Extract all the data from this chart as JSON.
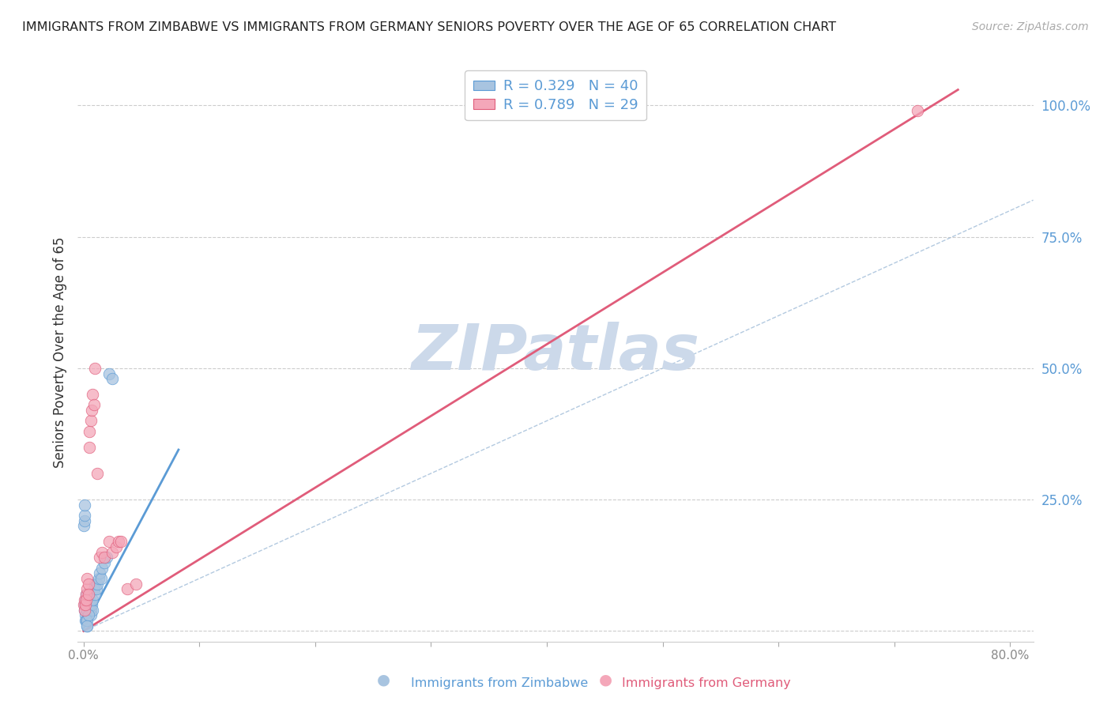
{
  "title": "IMMIGRANTS FROM ZIMBABWE VS IMMIGRANTS FROM GERMANY SENIORS POVERTY OVER THE AGE OF 65 CORRELATION CHART",
  "source": "Source: ZipAtlas.com",
  "ylabel": "Seniors Poverty Over the Age of 65",
  "xlabel": "",
  "xlim": [
    -0.005,
    0.82
  ],
  "ylim": [
    -0.02,
    1.08
  ],
  "xticks": [
    0.0,
    0.1,
    0.2,
    0.3,
    0.4,
    0.5,
    0.6,
    0.7,
    0.8
  ],
  "xticklabels": [
    "0.0%",
    "",
    "",
    "",
    "",
    "",
    "",
    "",
    "80.0%"
  ],
  "yticks_right": [
    0.0,
    0.25,
    0.5,
    0.75,
    1.0
  ],
  "ytick_labels_right": [
    "",
    "25.0%",
    "50.0%",
    "75.0%",
    "100.0%"
  ],
  "series1_name": "Immigrants from Zimbabwe",
  "series2_name": "Immigrants from Germany",
  "color1": "#a8c4e0",
  "color2": "#f4a7b9",
  "line_color1": "#5b9bd5",
  "line_color2": "#e05c7a",
  "text_color_right": "#5b9bd5",
  "watermark_color": "#ccd9ea",
  "grid_color": "#cccccc",
  "background_color": "#ffffff",
  "zimbabwe_x": [
    0.0008,
    0.001,
    0.0012,
    0.0015,
    0.002,
    0.002,
    0.003,
    0.003,
    0.004,
    0.004,
    0.005,
    0.005,
    0.006,
    0.006,
    0.007,
    0.008,
    0.008,
    0.009,
    0.01,
    0.01,
    0.011,
    0.012,
    0.013,
    0.014,
    0.015,
    0.016,
    0.018,
    0.02,
    0.022,
    0.025,
    0.0005,
    0.0008,
    0.001,
    0.0015,
    0.002,
    0.003,
    0.003,
    0.004,
    0.003,
    0.001
  ],
  "zimbabwe_y": [
    0.04,
    0.05,
    0.03,
    0.06,
    0.07,
    0.05,
    0.04,
    0.06,
    0.05,
    0.07,
    0.06,
    0.05,
    0.04,
    0.03,
    0.05,
    0.04,
    0.06,
    0.08,
    0.07,
    0.09,
    0.08,
    0.09,
    0.1,
    0.11,
    0.1,
    0.12,
    0.13,
    0.14,
    0.49,
    0.48,
    0.2,
    0.21,
    0.22,
    0.02,
    0.02,
    0.01,
    0.02,
    0.03,
    0.01,
    0.24
  ],
  "germany_x": [
    0.0005,
    0.001,
    0.001,
    0.0015,
    0.002,
    0.002,
    0.003,
    0.003,
    0.004,
    0.004,
    0.005,
    0.005,
    0.006,
    0.007,
    0.008,
    0.009,
    0.01,
    0.012,
    0.014,
    0.016,
    0.018,
    0.022,
    0.025,
    0.028,
    0.03,
    0.032,
    0.038,
    0.045,
    0.72
  ],
  "germany_y": [
    0.05,
    0.04,
    0.06,
    0.05,
    0.07,
    0.06,
    0.08,
    0.1,
    0.09,
    0.07,
    0.35,
    0.38,
    0.4,
    0.42,
    0.45,
    0.43,
    0.5,
    0.3,
    0.14,
    0.15,
    0.14,
    0.17,
    0.15,
    0.16,
    0.17,
    0.17,
    0.08,
    0.09,
    0.99
  ],
  "zim_trend_x": [
    0.0,
    0.082
  ],
  "zim_trend_y": [
    0.005,
    0.345
  ],
  "ger_trend_x": [
    0.0,
    0.755
  ],
  "ger_trend_y": [
    0.0,
    1.03
  ],
  "ref_line_x": [
    0.0,
    0.82
  ],
  "ref_line_y": [
    0.0,
    0.82
  ]
}
